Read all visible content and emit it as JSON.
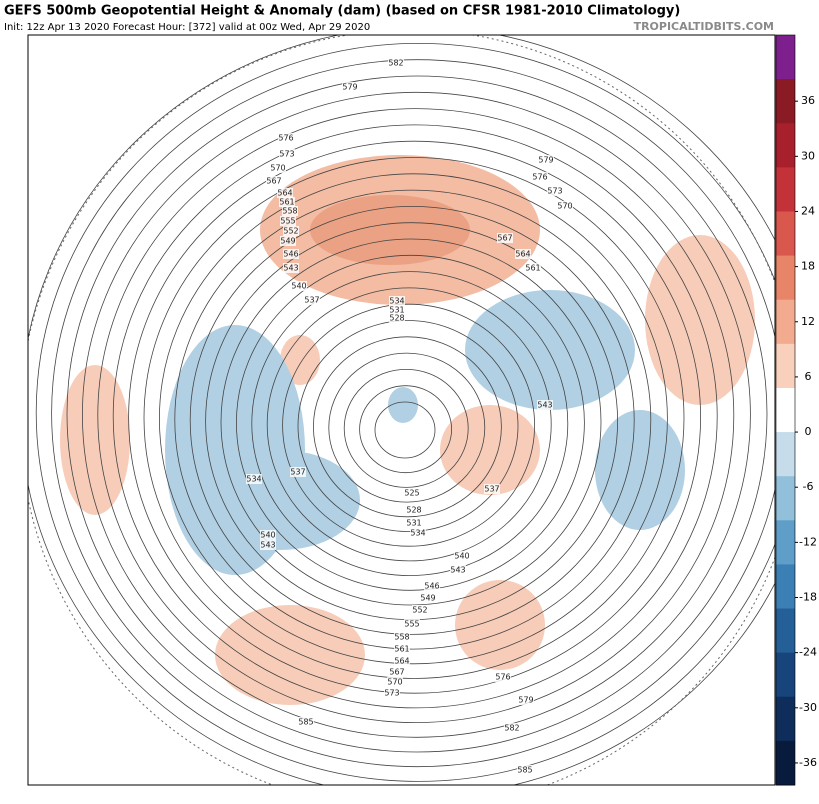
{
  "header": {
    "title": "GEFS 500mb Geopotential Height & Anomaly (dam) (based on CFSR 1981-2010 Climatology)",
    "subtitle": "Init: 12z Apr 13 2020   Forecast Hour: [372]   valid at 00z Wed, Apr 29 2020",
    "brand": "TROPICALTIDBITS.COM"
  },
  "colorbar": {
    "ticks": [
      36,
      30,
      24,
      18,
      12,
      6,
      0,
      -6,
      -12,
      -18,
      -24,
      -30,
      -36
    ],
    "colors": [
      "#7d1f8c",
      "#8a1a23",
      "#a8202b",
      "#c33238",
      "#d9574c",
      "#e88467",
      "#f2ab8f",
      "#f8d0bb",
      "#ffffff",
      "#c6dcea",
      "#92c0da",
      "#5e9ec9",
      "#3b7fb5",
      "#245f97",
      "#17447a",
      "#0e2d5a",
      "#081b3d"
    ]
  },
  "contour_labels": [
    582,
    579,
    576,
    573,
    570,
    567,
    564,
    561,
    558,
    555,
    552,
    549,
    546,
    543,
    540,
    537,
    534,
    531,
    528,
    579,
    576,
    573,
    570,
    567,
    564,
    561,
    543,
    537,
    534,
    540,
    543,
    537,
    525,
    528,
    531,
    534,
    540,
    543,
    546,
    549,
    552,
    555,
    558,
    561,
    564,
    567,
    570,
    573,
    576,
    579,
    582,
    585,
    585
  ]
}
